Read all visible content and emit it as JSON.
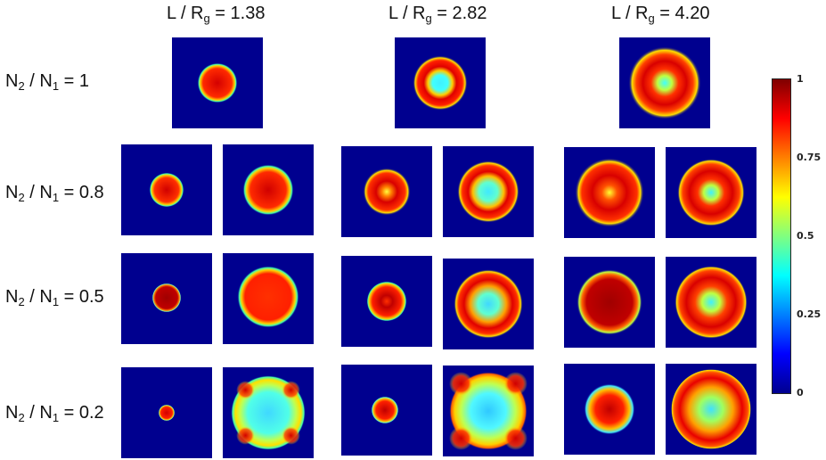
{
  "header": {
    "col1": {
      "prefix": "L / R",
      "sub": "g",
      "suffix": " = 1.38"
    },
    "col2": {
      "prefix": "L / R",
      "sub": "g",
      "suffix": " = 2.82"
    },
    "col3": {
      "prefix": "L / R",
      "sub": "g",
      "suffix": " = 4.20"
    }
  },
  "rows": {
    "r1": {
      "a": "N",
      "s1": "2",
      "b": " / N",
      "s2": "1",
      "c": " = 1"
    },
    "r2": {
      "a": "N",
      "s1": "2",
      "b": " / N",
      "s2": "1",
      "c": " = 0.8"
    },
    "r3": {
      "a": "N",
      "s1": "2",
      "b": " / N",
      "s2": "1",
      "c": " = 0.5"
    },
    "r4": {
      "a": "N",
      "s1": "2",
      "b": " / N",
      "s2": "1",
      "c": " = 0.2"
    }
  },
  "colorbar": {
    "ticks": [
      "1",
      "0.75",
      "0.5",
      "0.25",
      "0"
    ],
    "colors": [
      "#7f0000",
      "#ff0000",
      "#ff8000",
      "#ffff00",
      "#80ff80",
      "#00ffff",
      "#0080ff",
      "#0000ff",
      "#00008f"
    ]
  }
}
